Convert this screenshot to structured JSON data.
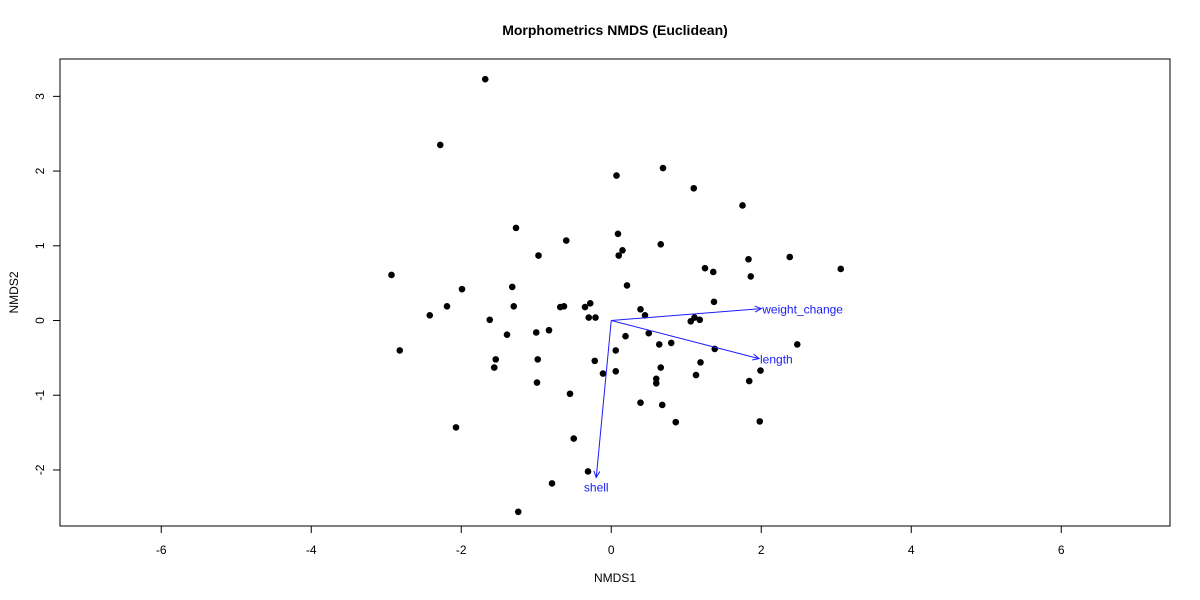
{
  "chart_data": {
    "type": "scatter",
    "title": "Morphometrics NMDS (Euclidean)",
    "xlabel": "NMDS1",
    "ylabel": "NMDS2",
    "xlim": [
      -7.35,
      7.45
    ],
    "ylim": [
      -2.75,
      3.5
    ],
    "xticks": [
      -6,
      -4,
      -2,
      0,
      2,
      4,
      6
    ],
    "yticks": [
      -2,
      -1,
      0,
      1,
      2,
      3
    ],
    "grid": false,
    "point_color": "#000000",
    "vector_color": "#1a1aff",
    "points": [
      [
        -1.68,
        3.23
      ],
      [
        -2.28,
        2.35
      ],
      [
        0.07,
        1.94
      ],
      [
        0.69,
        2.04
      ],
      [
        1.1,
        1.77
      ],
      [
        1.75,
        1.54
      ],
      [
        -1.27,
        1.24
      ],
      [
        -0.97,
        0.87
      ],
      [
        -0.6,
        1.07
      ],
      [
        0.09,
        1.16
      ],
      [
        0.15,
        0.94
      ],
      [
        0.1,
        0.87
      ],
      [
        0.66,
        1.02
      ],
      [
        1.83,
        0.82
      ],
      [
        2.38,
        0.85
      ],
      [
        1.25,
        0.7
      ],
      [
        1.36,
        0.65
      ],
      [
        1.86,
        0.59
      ],
      [
        3.06,
        0.69
      ],
      [
        -2.93,
        0.61
      ],
      [
        -1.99,
        0.42
      ],
      [
        -1.32,
        0.45
      ],
      [
        0.21,
        0.47
      ],
      [
        -2.19,
        0.19
      ],
      [
        -1.3,
        0.19
      ],
      [
        -0.68,
        0.18
      ],
      [
        -0.63,
        0.19
      ],
      [
        -0.35,
        0.18
      ],
      [
        -0.28,
        0.23
      ],
      [
        -0.3,
        0.04
      ],
      [
        -0.21,
        0.04
      ],
      [
        0.39,
        0.15
      ],
      [
        0.45,
        0.07
      ],
      [
        1.37,
        0.25
      ],
      [
        -2.42,
        0.07
      ],
      [
        -1.62,
        0.01
      ],
      [
        1.06,
        -0.01
      ],
      [
        1.11,
        0.04
      ],
      [
        1.18,
        0.01
      ],
      [
        2.48,
        -0.32
      ],
      [
        -1.39,
        -0.19
      ],
      [
        -0.83,
        -0.13
      ],
      [
        -1.0,
        -0.16
      ],
      [
        0.5,
        -0.17
      ],
      [
        0.19,
        -0.21
      ],
      [
        0.8,
        -0.3
      ],
      [
        0.64,
        -0.32
      ],
      [
        1.38,
        -0.38
      ],
      [
        -2.82,
        -0.4
      ],
      [
        -1.54,
        -0.52
      ],
      [
        -1.56,
        -0.63
      ],
      [
        -0.98,
        -0.52
      ],
      [
        -0.22,
        -0.54
      ],
      [
        0.06,
        -0.4
      ],
      [
        1.19,
        -0.56
      ],
      [
        0.66,
        -0.63
      ],
      [
        0.06,
        -0.68
      ],
      [
        -0.11,
        -0.71
      ],
      [
        1.99,
        -0.67
      ],
      [
        1.13,
        -0.73
      ],
      [
        0.6,
        -0.78
      ],
      [
        0.6,
        -0.84
      ],
      [
        1.84,
        -0.81
      ],
      [
        -0.99,
        -0.83
      ],
      [
        -0.55,
        -0.98
      ],
      [
        0.39,
        -1.1
      ],
      [
        0.68,
        -1.13
      ],
      [
        0.86,
        -1.36
      ],
      [
        1.98,
        -1.35
      ],
      [
        -2.07,
        -1.43
      ],
      [
        -0.5,
        -1.58
      ],
      [
        -0.31,
        -2.02
      ],
      [
        -0.79,
        -2.18
      ],
      [
        -1.24,
        -2.56
      ]
    ],
    "vectors": [
      {
        "name": "weight_change",
        "x": 2.0,
        "y": 0.16
      },
      {
        "name": "length",
        "x": 1.97,
        "y": -0.51
      },
      {
        "name": "shell",
        "x": -0.2,
        "y": -2.1
      }
    ]
  }
}
